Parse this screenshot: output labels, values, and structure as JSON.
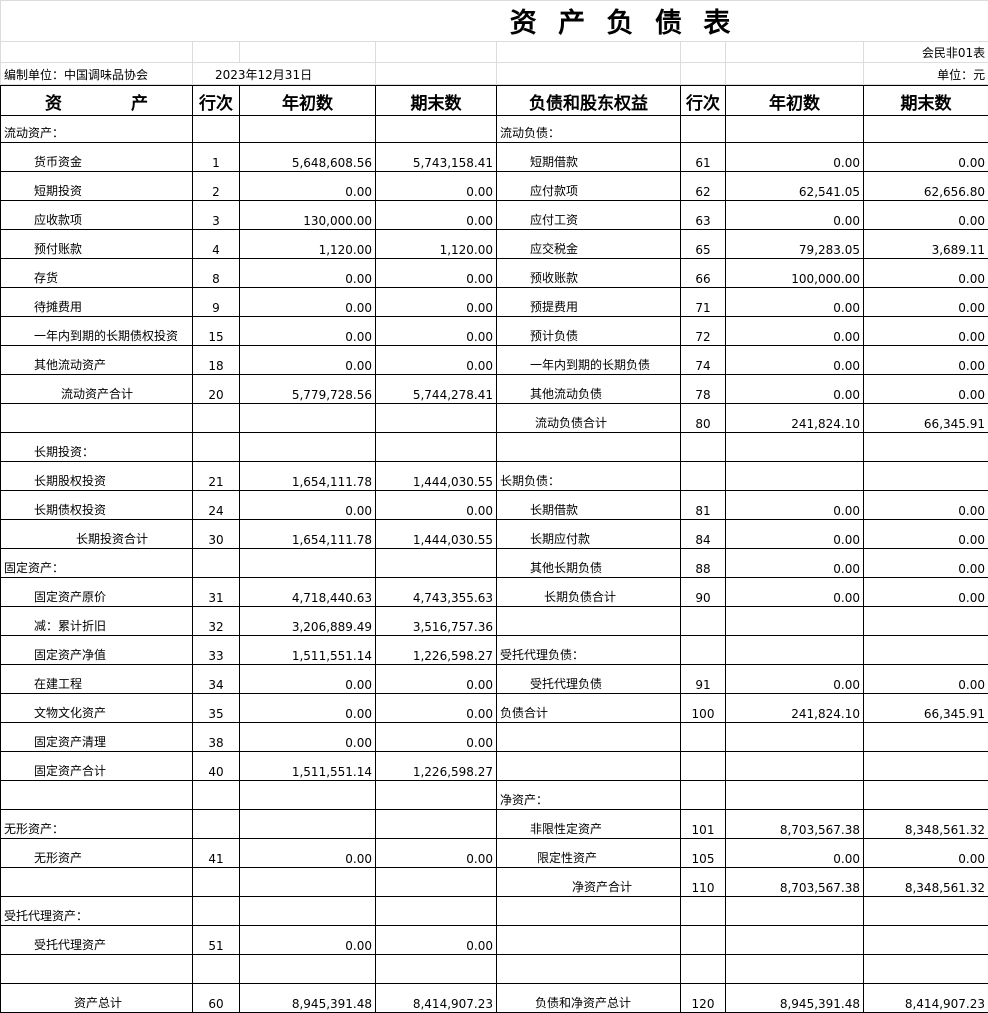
{
  "header": {
    "title": "资 产 负 债 表",
    "form_code": "会民非01表",
    "organization": "编制单位：中国调味品协会",
    "date": "2023年12月31日",
    "unit": "单位：元"
  },
  "table": {
    "columns": [
      "资 产",
      "行次",
      "年初数",
      "期末数",
      "负债和股东权益",
      "行次",
      "年初数",
      "期末数"
    ],
    "rows": [
      [
        "流动资产：",
        null,
        null,
        null,
        "流动负债：",
        null,
        null,
        null
      ],
      [
        "货币资金",
        "1",
        "5,648,608.56",
        "5,743,158.41",
        "短期借款",
        "61",
        "0.00",
        "0.00"
      ],
      [
        "短期投资",
        "2",
        "0.00",
        "0.00",
        "应付款项",
        "62",
        "62,541.05",
        "62,656.80"
      ],
      [
        "应收款项",
        "3",
        "130,000.00",
        "0.00",
        "应付工资",
        "63",
        "0.00",
        "0.00"
      ],
      [
        "预付账款",
        "4",
        "1,120.00",
        "1,120.00",
        "应交税金",
        "65",
        "79,283.05",
        "3,689.11"
      ],
      [
        "存货",
        "8",
        "0.00",
        "0.00",
        "预收账款",
        "66",
        "100,000.00",
        "0.00"
      ],
      [
        "待摊费用",
        "9",
        "0.00",
        "0.00",
        "预提费用",
        "71",
        "0.00",
        "0.00"
      ],
      [
        "一年内到期的长期债权投资",
        "15",
        "0.00",
        "0.00",
        "预计负债",
        "72",
        "0.00",
        "0.00"
      ],
      [
        "其他流动资产",
        "18",
        "0.00",
        "0.00",
        "一年内到期的长期负债",
        "74",
        "0.00",
        "0.00"
      ],
      [
        "流动资产合计",
        "20",
        "5,779,728.56",
        "5,744,278.41",
        "其他流动负债",
        "78",
        "0.00",
        "0.00"
      ],
      [
        null,
        null,
        null,
        null,
        "流动负债合计",
        "80",
        "241,824.10",
        "66,345.91"
      ],
      [
        "长期投资：",
        null,
        null,
        null,
        null,
        null,
        null,
        null
      ],
      [
        "长期股权投资",
        "21",
        "1,654,111.78",
        "1,444,030.55",
        "长期负债：",
        null,
        null,
        null
      ],
      [
        "长期债权投资",
        "24",
        "0.00",
        "0.00",
        "长期借款",
        "81",
        "0.00",
        "0.00"
      ],
      [
        "长期投资合计",
        "30",
        "1,654,111.78",
        "1,444,030.55",
        "长期应付款",
        "84",
        "0.00",
        "0.00"
      ],
      [
        "固定资产：",
        null,
        null,
        null,
        "其他长期负债",
        "88",
        "0.00",
        "0.00"
      ],
      [
        "固定资产原价",
        "31",
        "4,718,440.63",
        "4,743,355.63",
        "长期负债合计",
        "90",
        "0.00",
        "0.00"
      ],
      [
        "减：累计折旧",
        "32",
        "3,206,889.49",
        "3,516,757.36",
        null,
        null,
        null,
        null
      ],
      [
        "固定资产净值",
        "33",
        "1,511,551.14",
        "1,226,598.27",
        "受托代理负债：",
        null,
        null,
        null
      ],
      [
        "在建工程",
        "34",
        "0.00",
        "0.00",
        "受托代理负债",
        "91",
        "0.00",
        "0.00"
      ],
      [
        "文物文化资产",
        "35",
        "0.00",
        "0.00",
        "负债合计",
        "100",
        "241,824.10",
        "66,345.91"
      ],
      [
        "固定资产清理",
        "38",
        "0.00",
        "0.00",
        null,
        null,
        null,
        null
      ],
      [
        "固定资产合计",
        "40",
        "1,511,551.14",
        "1,226,598.27",
        null,
        null,
        null,
        null
      ],
      [
        null,
        null,
        null,
        null,
        "净资产：",
        null,
        null,
        null
      ],
      [
        "无形资产：",
        null,
        null,
        null,
        "非限性定资产",
        "101",
        "8,703,567.38",
        "8,348,561.32"
      ],
      [
        "无形资产",
        "41",
        "0.00",
        "0.00",
        "限定性资产",
        "105",
        "0.00",
        "0.00"
      ],
      [
        null,
        null,
        null,
        null,
        "净资产合计",
        "110",
        "8,703,567.38",
        "8,348,561.32"
      ],
      [
        "受托代理资产：",
        null,
        null,
        null,
        null,
        null,
        null,
        null
      ],
      [
        "受托代理资产",
        "51",
        "0.00",
        "0.00",
        null,
        null,
        null,
        null
      ],
      [
        null,
        null,
        null,
        null,
        null,
        null,
        null,
        null
      ],
      [
        "资产总计",
        "60",
        "8,945,391.48",
        "8,414,907.23",
        "负债和净资产总计",
        "120",
        "8,945,391.48",
        "8,414,907.23"
      ]
    ]
  }
}
